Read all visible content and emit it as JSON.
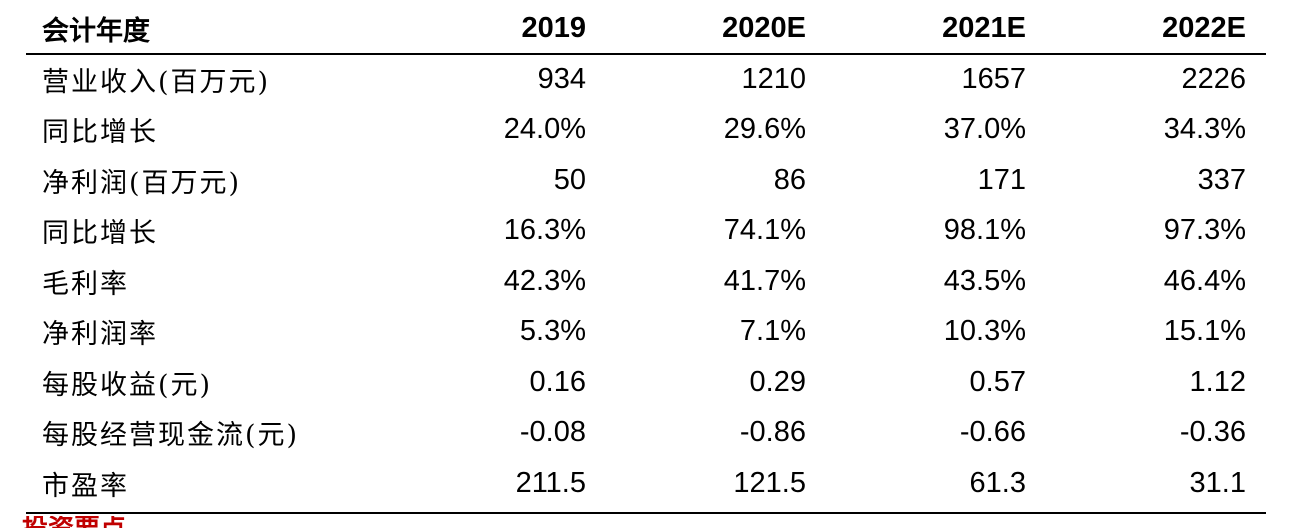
{
  "table": {
    "header": {
      "label": "会计年度",
      "years": [
        "2019",
        "2020E",
        "2021E",
        "2022E"
      ]
    },
    "rows": [
      {
        "label": "营业收入(百万元)",
        "values": [
          "934",
          "1210",
          "1657",
          "2226"
        ]
      },
      {
        "label": "同比增长",
        "values": [
          "24.0%",
          "29.6%",
          "37.0%",
          "34.3%"
        ]
      },
      {
        "label": "净利润(百万元)",
        "values": [
          "50",
          "86",
          "171",
          "337"
        ]
      },
      {
        "label": "同比增长",
        "values": [
          "16.3%",
          "74.1%",
          "98.1%",
          "97.3%"
        ]
      },
      {
        "label": "毛利率",
        "values": [
          "42.3%",
          "41.7%",
          "43.5%",
          "46.4%"
        ]
      },
      {
        "label": "净利润率",
        "values": [
          "5.3%",
          "7.1%",
          "10.3%",
          "15.1%"
        ]
      },
      {
        "label": "每股收益(元)",
        "values": [
          "0.16",
          "0.29",
          "0.57",
          "1.12"
        ]
      },
      {
        "label": "每股经营现金流(元)",
        "values": [
          "-0.08",
          "-0.86",
          "-0.66",
          "-0.36"
        ]
      },
      {
        "label": "市盈率",
        "values": [
          "211.5",
          "121.5",
          "61.3",
          "31.1"
        ]
      }
    ]
  },
  "footer": {
    "source_fragment": "投资要点",
    "source_color": "#c00000"
  }
}
